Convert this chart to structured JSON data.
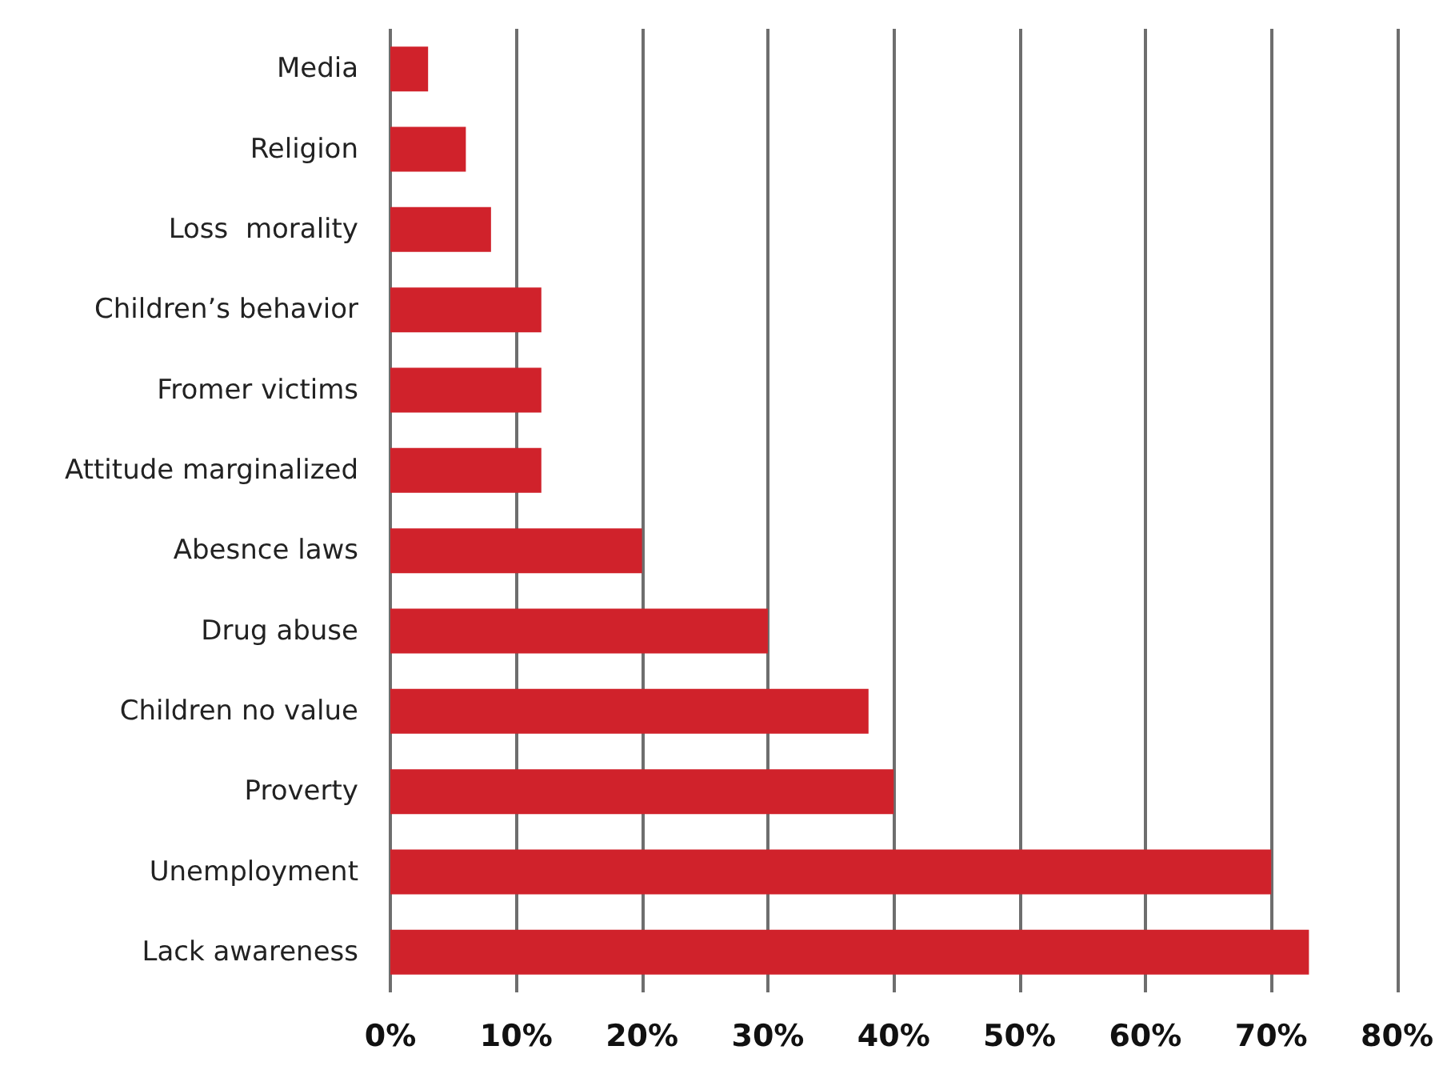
{
  "chart_data": {
    "type": "bar",
    "orientation": "horizontal",
    "categories": [
      "Media",
      "Religion",
      "Loss  morality",
      "Children’s behavior",
      "Fromer victims",
      "Attitude marginalized",
      "Abesnce laws",
      "Drug abuse",
      "Children no value",
      "Proverty",
      "Unemployment",
      "Lack awareness"
    ],
    "values": [
      3,
      6,
      8,
      12,
      12,
      12,
      20,
      30,
      38,
      40,
      70,
      73
    ],
    "color": "#d0222b",
    "xlim": [
      0,
      80
    ],
    "xticks": [
      {
        "value": 0,
        "label": "0%"
      },
      {
        "value": 10,
        "label": "10%"
      },
      {
        "value": 20,
        "label": "20%"
      },
      {
        "value": 30,
        "label": "30%"
      },
      {
        "value": 40,
        "label": "40%"
      },
      {
        "value": 50,
        "label": "50%"
      },
      {
        "value": 60,
        "label": "60%"
      },
      {
        "value": 70,
        "label": "70%"
      },
      {
        "value": 80,
        "label": "80%"
      }
    ],
    "grid": "x"
  }
}
